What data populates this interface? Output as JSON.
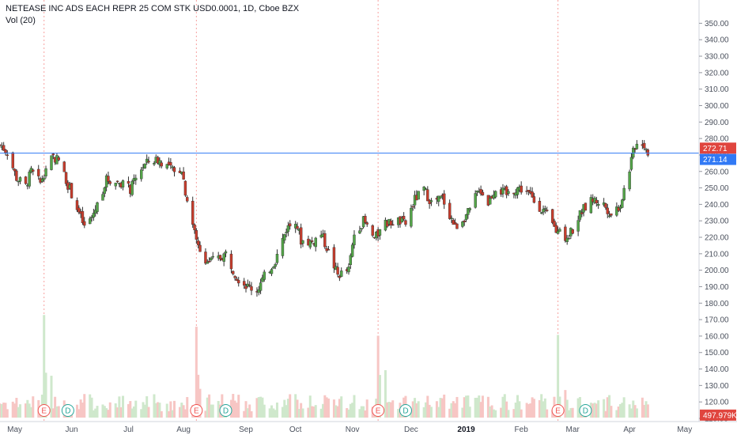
{
  "header": {
    "symbol_line": "NETEASE INC ADS EACH REPR 25 COM STK USD0.0001, 1D, Cboe BZX",
    "volume_label": "Vol (20)"
  },
  "colors": {
    "up": "#53a548",
    "down": "#c83c2c",
    "vol_up": "#cfe8cc",
    "vol_down": "#f7c6c4",
    "hline": "#3179f5",
    "last_price_tag": "#e0453e",
    "line_tag": "#3179f5",
    "earnings": "#ef5350",
    "dividend": "#26a69a"
  },
  "price_tags": {
    "last": "272.71",
    "hline": "271.14",
    "volume": "497.979K"
  },
  "chart_data": {
    "type": "candlestick",
    "x_range": [
      "2018-04-23",
      "2019-05-08"
    ],
    "ylim": [
      110,
      355
    ],
    "yticks": [
      "110.00",
      "120.00",
      "130.00",
      "140.00",
      "150.00",
      "160.00",
      "170.00",
      "180.00",
      "190.00",
      "200.00",
      "210.00",
      "220.00",
      "230.00",
      "240.00",
      "250.00",
      "260.00",
      "270.00",
      "280.00",
      "290.00",
      "300.00",
      "310.00",
      "320.00",
      "330.00",
      "340.00",
      "350.00"
    ],
    "xticks": [
      {
        "label": "May",
        "date": "2018-05-01"
      },
      {
        "label": "Jun",
        "date": "2018-06-01"
      },
      {
        "label": "Jul",
        "date": "2018-07-02"
      },
      {
        "label": "Aug",
        "date": "2018-08-01"
      },
      {
        "label": "Sep",
        "date": "2018-09-04"
      },
      {
        "label": "Oct",
        "date": "2018-10-01"
      },
      {
        "label": "Nov",
        "date": "2018-11-01"
      },
      {
        "label": "Dec",
        "date": "2018-12-03"
      },
      {
        "label": "2019",
        "date": "2019-01-02",
        "bold": true
      },
      {
        "label": "Feb",
        "date": "2019-02-01"
      },
      {
        "label": "Mar",
        "date": "2019-03-01"
      },
      {
        "label": "Apr",
        "date": "2019-04-01"
      },
      {
        "label": "May",
        "date": "2019-05-01"
      }
    ],
    "horizontal_line": 271.14,
    "price_path": [
      [
        "2018-04-23",
        276
      ],
      [
        "2018-04-27",
        272
      ],
      [
        "2018-05-02",
        256
      ],
      [
        "2018-05-07",
        251
      ],
      [
        "2018-05-10",
        260
      ],
      [
        "2018-05-15",
        253
      ],
      [
        "2018-05-18",
        262
      ],
      [
        "2018-05-22",
        269
      ],
      [
        "2018-05-25",
        267
      ],
      [
        "2018-05-30",
        252
      ],
      [
        "2018-06-05",
        235
      ],
      [
        "2018-06-08",
        226
      ],
      [
        "2018-06-12",
        232
      ],
      [
        "2018-06-15",
        240
      ],
      [
        "2018-06-20",
        255
      ],
      [
        "2018-06-25",
        254
      ],
      [
        "2018-06-29",
        253
      ],
      [
        "2018-07-03",
        249
      ],
      [
        "2018-07-09",
        262
      ],
      [
        "2018-07-13",
        266
      ],
      [
        "2018-07-18",
        267
      ],
      [
        "2018-07-24",
        263
      ],
      [
        "2018-07-27",
        259
      ],
      [
        "2018-07-31",
        262
      ],
      [
        "2018-08-02",
        248
      ],
      [
        "2018-08-08",
        218
      ],
      [
        "2018-08-14",
        205
      ],
      [
        "2018-08-20",
        207
      ],
      [
        "2018-08-24",
        210
      ],
      [
        "2018-08-30",
        196
      ],
      [
        "2018-09-05",
        190
      ],
      [
        "2018-09-10",
        188
      ],
      [
        "2018-09-14",
        196
      ],
      [
        "2018-09-20",
        206
      ],
      [
        "2018-09-26",
        225
      ],
      [
        "2018-10-01",
        231
      ],
      [
        "2018-10-04",
        218
      ],
      [
        "2018-10-10",
        217
      ],
      [
        "2018-10-15",
        222
      ],
      [
        "2018-10-19",
        211
      ],
      [
        "2018-10-24",
        197
      ],
      [
        "2018-10-30",
        200
      ],
      [
        "2018-11-02",
        222
      ],
      [
        "2018-11-07",
        230
      ],
      [
        "2018-11-13",
        219
      ],
      [
        "2018-11-19",
        228
      ],
      [
        "2018-11-26",
        230
      ],
      [
        "2018-11-30",
        228
      ],
      [
        "2018-12-05",
        243
      ],
      [
        "2018-12-10",
        249
      ],
      [
        "2018-12-14",
        241
      ],
      [
        "2018-12-20",
        244
      ],
      [
        "2018-12-27",
        226
      ],
      [
        "2019-01-04",
        236
      ],
      [
        "2019-01-09",
        250
      ],
      [
        "2019-01-14",
        241
      ],
      [
        "2019-01-18",
        250
      ],
      [
        "2019-01-24",
        246
      ],
      [
        "2019-01-30",
        250
      ],
      [
        "2019-02-04",
        248
      ],
      [
        "2019-02-08",
        242
      ],
      [
        "2019-02-14",
        235
      ],
      [
        "2019-02-20",
        224
      ],
      [
        "2019-02-26",
        220
      ],
      [
        "2019-03-01",
        225
      ],
      [
        "2019-03-06",
        236
      ],
      [
        "2019-03-12",
        243
      ],
      [
        "2019-03-18",
        240
      ],
      [
        "2019-03-22",
        234
      ],
      [
        "2019-03-27",
        240
      ],
      [
        "2019-04-01",
        262
      ],
      [
        "2019-04-04",
        276
      ],
      [
        "2019-04-08",
        278
      ],
      [
        "2019-04-11",
        272
      ]
    ],
    "volume_note": "Volume bars, estimated relative heights; two spikes on earnings days",
    "events": [
      {
        "type": "E",
        "date": "2018-05-17"
      },
      {
        "type": "D",
        "date": "2018-05-30"
      },
      {
        "type": "E",
        "date": "2018-08-08"
      },
      {
        "type": "D",
        "date": "2018-08-24"
      },
      {
        "type": "E",
        "date": "2018-11-15"
      },
      {
        "type": "D",
        "date": "2018-11-30"
      },
      {
        "type": "E",
        "date": "2019-02-21"
      },
      {
        "type": "D",
        "date": "2019-03-08"
      }
    ]
  }
}
